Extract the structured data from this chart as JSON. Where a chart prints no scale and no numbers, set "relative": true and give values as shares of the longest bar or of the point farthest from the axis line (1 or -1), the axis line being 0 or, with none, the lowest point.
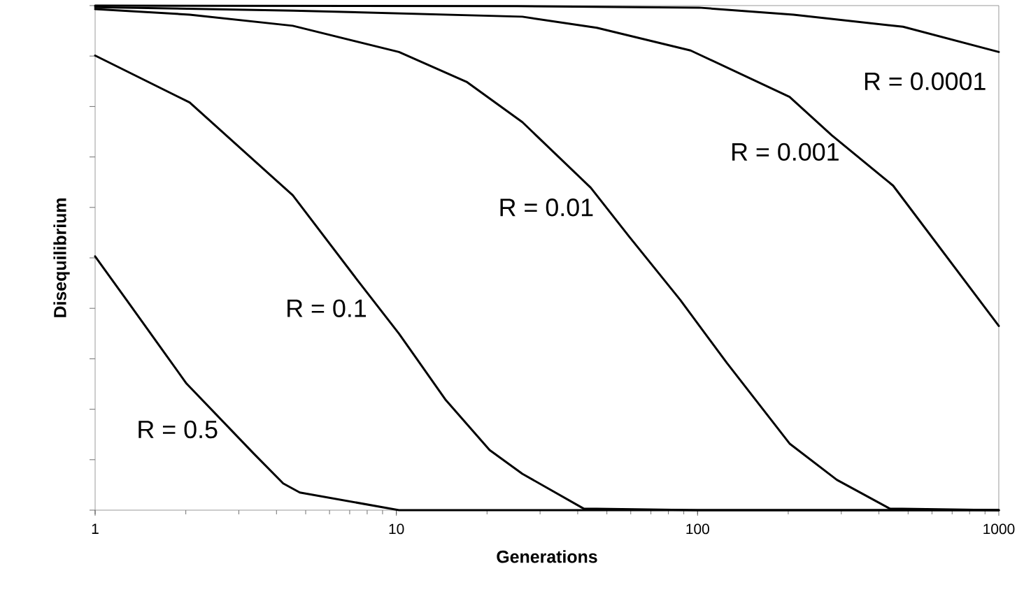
{
  "chart_data": {
    "type": "line",
    "relative": true,
    "log": "x",
    "xlabel": "Generations",
    "ylabel": "Disequilibrium",
    "xlim": [
      1,
      1000
    ],
    "xticks": [
      1,
      10,
      100,
      1000
    ],
    "marker": "none",
    "line_style": "solid",
    "series": [
      {
        "name": "R = 0.5",
        "color": "#000000",
        "x": [
          1,
          1.27,
          2.01,
          3.35,
          4.21,
          4.78,
          10.2,
          100,
          1000
        ],
        "values": [
          0.503,
          0.417,
          0.251,
          0.113,
          0.053,
          0.035,
          0.0,
          0.0,
          0.0
        ]
      },
      {
        "name": "R = 0.1",
        "color": "#000000",
        "x": [
          1,
          2.06,
          4.53,
          7.38,
          10.2,
          14.6,
          20.4,
          26.2,
          41.9,
          100,
          1000
        ],
        "values": [
          0.901,
          0.808,
          0.624,
          0.458,
          0.35,
          0.218,
          0.119,
          0.072,
          0.003,
          0.0,
          0.0
        ]
      },
      {
        "name": "R = 0.01",
        "color": "#000000",
        "x": [
          1,
          2.06,
          4.53,
          10.2,
          17.1,
          26.2,
          44.2,
          59.3,
          87.5,
          125,
          202,
          290,
          435,
          1000
        ],
        "values": [
          0.993,
          0.982,
          0.96,
          0.908,
          0.849,
          0.769,
          0.639,
          0.542,
          0.417,
          0.292,
          0.132,
          0.06,
          0.003,
          0.0
        ]
      },
      {
        "name": "R = 0.001",
        "color": "#000000",
        "x": [
          1,
          4.56,
          26.2,
          46.3,
          94.8,
          202,
          279,
          446,
          1000
        ],
        "values": [
          0.997,
          0.99,
          0.978,
          0.956,
          0.911,
          0.819,
          0.743,
          0.643,
          0.365
        ]
      },
      {
        "name": "R = 0.0001",
        "color": "#000000",
        "x": [
          1,
          25.2,
          101,
          208,
          481,
          1000
        ],
        "values": [
          1.0,
          0.999,
          0.996,
          0.982,
          0.958,
          0.908
        ]
      }
    ]
  }
}
